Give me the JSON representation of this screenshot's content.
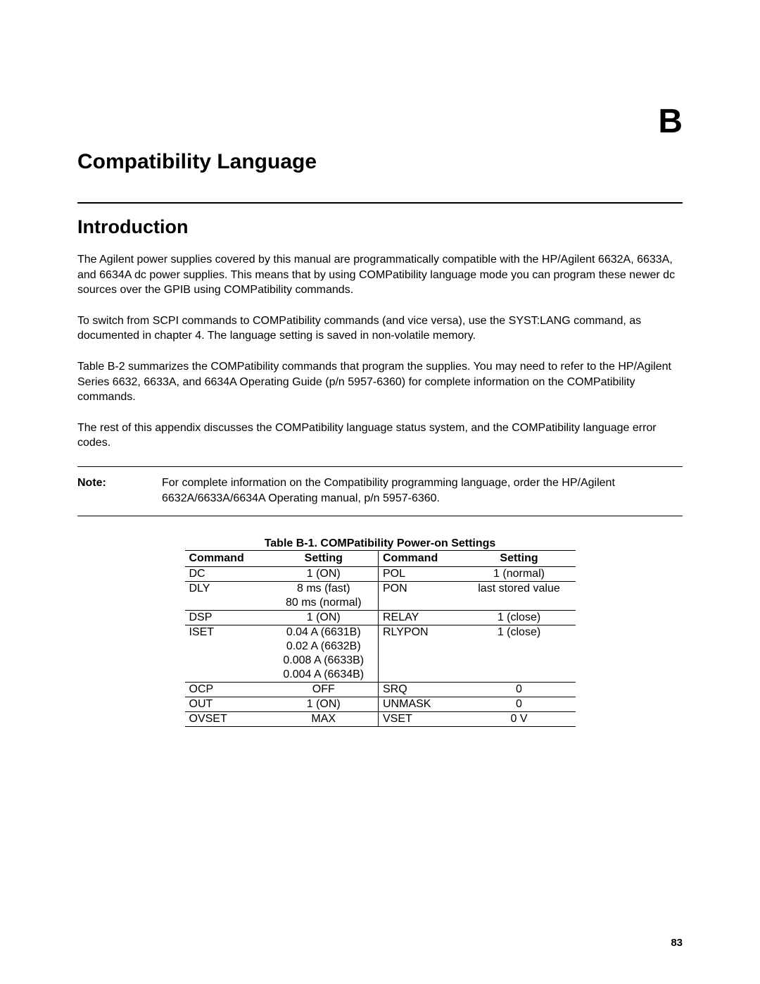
{
  "appendix_label": "B",
  "page_number": "83",
  "main_title": "Compatibility Language",
  "section_heading": "Introduction",
  "paragraphs": [
    "The Agilent power supplies covered by this manual  are programmatically compatible with the HP/Agilent 6632A, 6633A, and 6634A dc power supplies. This means that by using COMPatibility language mode you can program these newer dc sources over the GPIB using COMPatibility commands.",
    "To switch from SCPI commands to COMPatibility commands (and vice versa), use the  SYST:LANG command, as documented in chapter 4. The language setting is saved in non-volatile memory.",
    "Table B-2 summarizes the COMPatibility commands that program the supplies. You may need to refer to the HP/Agilent Series 6632, 6633A, and 6634A Operating Guide (p/n 5957-6360) for complete information on the COMPatibility commands.",
    "The rest of this appendix discusses the COMPatibility language status system, and the COMPatibility language error codes."
  ],
  "note": {
    "label": "Note:",
    "text": "For complete information on the Compatibility programming language, order the HP/Agilent 6632A/6633A/6634A Operating manual, p/n 5957-6360."
  },
  "table": {
    "caption": "Table B-1. COMPatibility Power-on Settings",
    "headers": [
      "Command",
      "Setting",
      "Command",
      "Setting"
    ],
    "rows": [
      {
        "cells": [
          "DC",
          "1 (ON)",
          "POL",
          "1 (normal)"
        ],
        "sep": true
      },
      {
        "cells": [
          "DLY",
          "8 ms (fast)",
          "PON",
          "last stored  value"
        ],
        "sep": true
      },
      {
        "cells": [
          "",
          "80 ms (normal)",
          "",
          ""
        ],
        "sep": false
      },
      {
        "cells": [
          "DSP",
          "1 (ON)",
          "RELAY",
          "1 (close)"
        ],
        "sep": true
      },
      {
        "cells": [
          "ISET",
          "0.04 A (6631B)",
          "RLYPON",
          "1 (close)"
        ],
        "sep": true
      },
      {
        "cells": [
          "",
          "0.02 A (6632B)",
          "",
          ""
        ],
        "sep": false
      },
      {
        "cells": [
          "",
          "0.008 A (6633B)",
          "",
          ""
        ],
        "sep": false
      },
      {
        "cells": [
          "",
          "0.004 A (6634B)",
          "",
          ""
        ],
        "sep": false
      },
      {
        "cells": [
          "OCP",
          "OFF",
          "SRQ",
          "0"
        ],
        "sep": true
      },
      {
        "cells": [
          "OUT",
          "1 (ON)",
          "UNMASK",
          "0"
        ],
        "sep": true
      },
      {
        "cells": [
          "OVSET",
          "MAX",
          "VSET",
          "0 V"
        ],
        "sep": true,
        "last": true
      }
    ]
  }
}
